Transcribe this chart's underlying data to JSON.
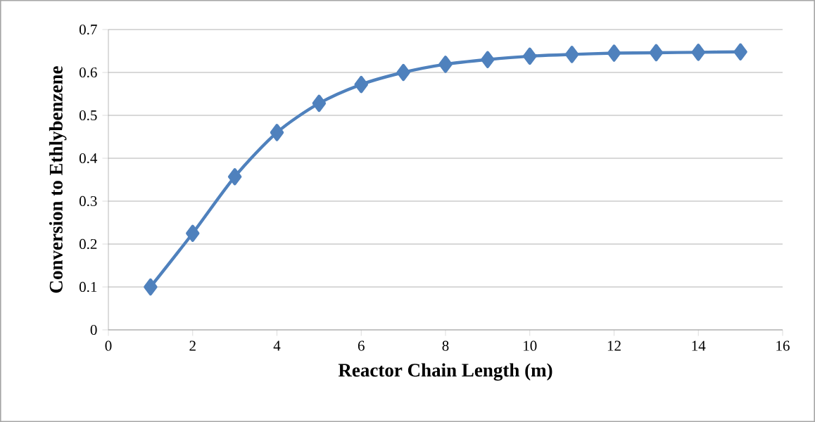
{
  "chart_data": {
    "type": "line",
    "xlabel": "Reactor Chain Length (m)",
    "ylabel": "Conversion to Ethlybenzene",
    "x": [
      1,
      2,
      3,
      4,
      5,
      6,
      7,
      8,
      9,
      10,
      11,
      12,
      13,
      14,
      15
    ],
    "series": [
      {
        "color": "#4f81bd",
        "values": [
          0.1,
          0.225,
          0.357,
          0.46,
          0.528,
          0.572,
          0.6,
          0.619,
          0.63,
          0.638,
          0.642,
          0.645,
          0.646,
          0.647,
          0.648
        ]
      }
    ],
    "xlim": [
      0,
      16
    ],
    "xticks": [
      0,
      2,
      4,
      6,
      8,
      10,
      12,
      14,
      16
    ],
    "ylim": [
      0,
      0.7
    ],
    "yticks": [
      0,
      0.1,
      0.2,
      0.3,
      0.4,
      0.5,
      0.6,
      0.7
    ],
    "grid": "y",
    "marker": "diamond",
    "line_style": "solid"
  }
}
